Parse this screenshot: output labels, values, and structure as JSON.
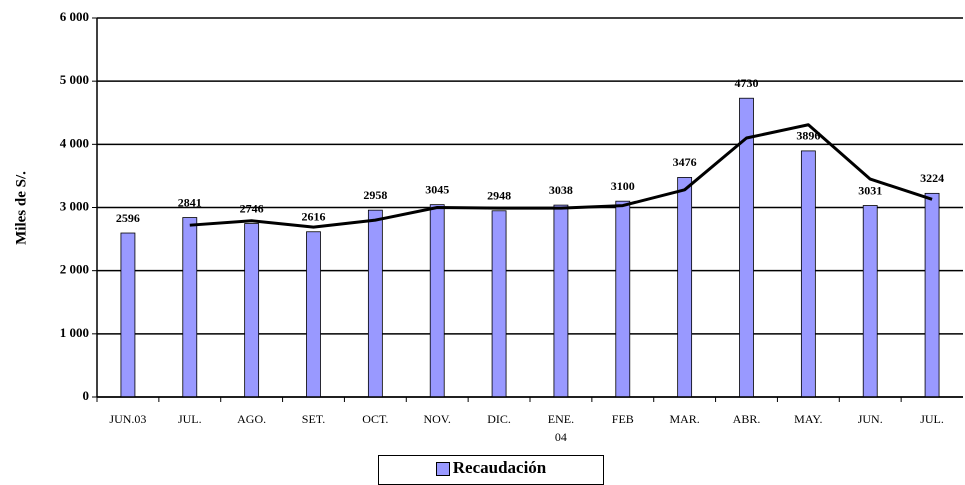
{
  "chart_data": {
    "type": "bar",
    "y_label": "Miles de S/.",
    "categories": [
      "JUN.03",
      "JUL.",
      "AGO.",
      "SET.",
      "OCT.",
      "NOV.",
      "DIC.",
      "ENE.\n04",
      "FEB",
      "MAR.",
      "ABR.",
      "MAY.",
      "JUN.",
      "JUL."
    ],
    "series": [
      {
        "name": "Recaudación",
        "type": "bar",
        "color": "#9999ff",
        "values": [
          2596,
          2841,
          2746,
          2616,
          2958,
          3045,
          2948,
          3038,
          3100,
          3476,
          4730,
          3896,
          3031,
          3224
        ]
      },
      {
        "type": "line",
        "color": "#000000",
        "values": [
          null,
          2720,
          2790,
          2690,
          2800,
          3000,
          2990,
          2990,
          3030,
          3280,
          4100,
          4310,
          3450,
          3130
        ]
      }
    ],
    "ylim": [
      0,
      6000
    ],
    "yticks": [
      0,
      {
        "value": 1000,
        "label": "1 000"
      },
      {
        "value": 2000,
        "label": "2 000"
      },
      {
        "value": 3000,
        "label": "3 000"
      },
      {
        "value": 4000,
        "label": "4 000"
      },
      {
        "value": 5000,
        "label": "5 000"
      },
      {
        "value": 6000,
        "label": "6 000"
      }
    ],
    "grid": true
  }
}
